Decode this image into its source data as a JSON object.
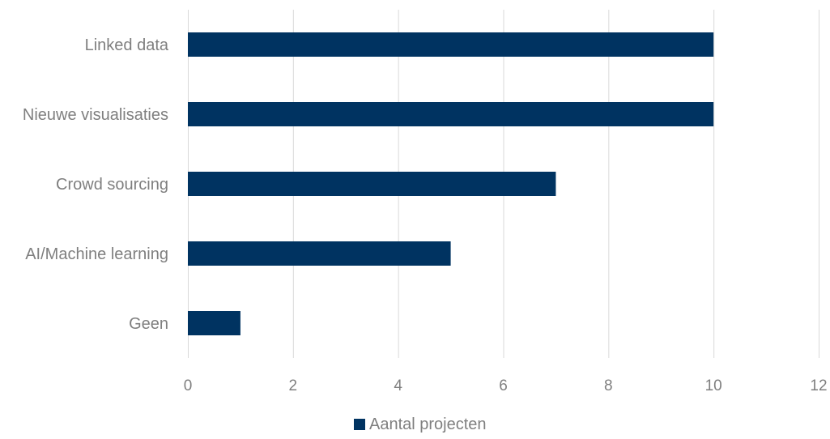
{
  "chart_data": {
    "type": "bar",
    "orientation": "horizontal",
    "categories": [
      "Linked data",
      "Nieuwe visualisaties",
      "Crowd sourcing",
      "AI/Machine learning",
      "Geen"
    ],
    "series": [
      {
        "name": "Aantal projecten",
        "values": [
          10,
          10,
          7,
          5,
          1
        ],
        "color": "#003361"
      }
    ],
    "title": "",
    "xlabel": "",
    "ylabel": "",
    "xlim": [
      0,
      12
    ],
    "xticks": [
      0,
      2,
      4,
      6,
      8,
      10,
      12
    ],
    "grid": "vertical",
    "gridColor": "#d9d9d9",
    "legend": "bottom-center"
  }
}
